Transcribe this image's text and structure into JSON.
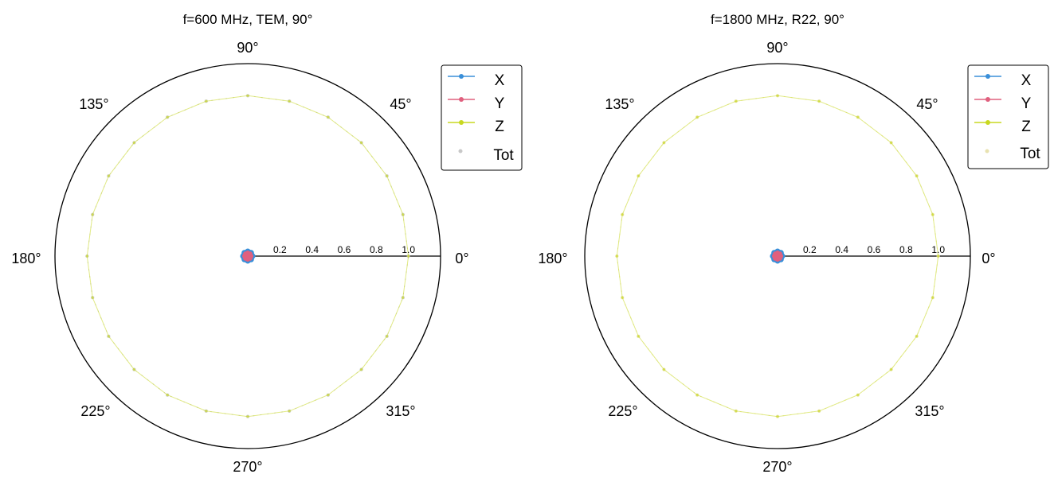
{
  "chart_data": [
    {
      "type": "polar",
      "title": "f=600 MHz, TEM, 90°",
      "angle_labels": [
        "0°",
        "45°",
        "90°",
        "135°",
        "180°",
        "225°",
        "270°",
        "315°"
      ],
      "radial_tick_labels": [
        "0.2",
        "0.4",
        "0.6",
        "0.8",
        "1.0"
      ],
      "rlim": [
        0,
        1.2
      ],
      "legend": {
        "position": "top-right",
        "entries": [
          "X",
          "Y",
          "Z",
          "Tot"
        ]
      },
      "series_colors": {
        "X": "#3a8fd9",
        "Y": "#e0607e",
        "Z": "#c8d820",
        "Tot": "#c8c8c8"
      },
      "series": [
        {
          "name": "X",
          "theta_deg": [
            0,
            45,
            90,
            135,
            180,
            225,
            270,
            315
          ],
          "r": [
            0.03,
            0.03,
            0.03,
            0.03,
            0.03,
            0.03,
            0.03,
            0.03
          ]
        },
        {
          "name": "Y",
          "theta_deg": [
            0,
            45,
            90,
            135,
            180,
            225,
            270,
            315
          ],
          "r": [
            0.02,
            0.02,
            0.02,
            0.02,
            0.02,
            0.02,
            0.02,
            0.02
          ]
        },
        {
          "name": "Z",
          "theta_deg": [
            0,
            15,
            30,
            45,
            60,
            75,
            90,
            105,
            120,
            135,
            150,
            165,
            180,
            195,
            210,
            225,
            240,
            255,
            270,
            285,
            300,
            315,
            330,
            345
          ],
          "r": [
            1.0,
            1.0,
            1.0,
            1.0,
            1.0,
            1.0,
            1.0,
            1.0,
            1.0,
            1.0,
            1.0,
            1.0,
            1.0,
            1.0,
            1.0,
            1.0,
            1.0,
            1.0,
            1.0,
            1.0,
            1.0,
            1.0,
            1.0,
            1.0
          ]
        },
        {
          "name": "Tot",
          "theta_deg": [
            0,
            15,
            30,
            45,
            60,
            75,
            90,
            105,
            120,
            135,
            150,
            165,
            180,
            195,
            210,
            225,
            240,
            255,
            270,
            285,
            300,
            315,
            330,
            345
          ],
          "r": [
            1.0,
            1.0,
            1.0,
            1.0,
            1.0,
            1.0,
            1.0,
            1.0,
            1.0,
            1.0,
            1.0,
            1.0,
            1.0,
            1.0,
            1.0,
            1.0,
            1.0,
            1.0,
            1.0,
            1.0,
            1.0,
            1.0,
            1.0,
            1.0
          ]
        }
      ]
    },
    {
      "type": "polar",
      "title": "f=1800 MHz, R22, 90°",
      "angle_labels": [
        "0°",
        "45°",
        "90°",
        "135°",
        "180°",
        "225°",
        "270°",
        "315°"
      ],
      "radial_tick_labels": [
        "0.2",
        "0.4",
        "0.6",
        "0.8",
        "1.0"
      ],
      "rlim": [
        0,
        1.2
      ],
      "legend": {
        "position": "top-right",
        "entries": [
          "X",
          "Y",
          "Z",
          "Tot"
        ]
      },
      "series_colors": {
        "X": "#3a8fd9",
        "Y": "#e0607e",
        "Z": "#c8d820",
        "Tot": "#e8e2b0"
      },
      "series": [
        {
          "name": "X",
          "theta_deg": [
            0,
            45,
            90,
            135,
            180,
            225,
            270,
            315
          ],
          "r": [
            0.03,
            0.03,
            0.03,
            0.03,
            0.03,
            0.03,
            0.03,
            0.03
          ]
        },
        {
          "name": "Y",
          "theta_deg": [
            0,
            45,
            90,
            135,
            180,
            225,
            270,
            315
          ],
          "r": [
            0.02,
            0.02,
            0.02,
            0.02,
            0.02,
            0.02,
            0.02,
            0.02
          ]
        },
        {
          "name": "Z",
          "theta_deg": [
            0,
            15,
            30,
            45,
            60,
            75,
            90,
            105,
            120,
            135,
            150,
            165,
            180,
            195,
            210,
            225,
            240,
            255,
            270,
            285,
            300,
            315,
            330,
            345
          ],
          "r": [
            1.0,
            1.0,
            1.0,
            1.0,
            1.0,
            1.0,
            1.0,
            1.0,
            1.0,
            1.0,
            1.0,
            1.0,
            1.0,
            1.0,
            1.0,
            1.0,
            1.0,
            1.0,
            1.0,
            1.0,
            1.0,
            1.0,
            1.0,
            1.0
          ]
        },
        {
          "name": "Tot",
          "theta_deg": [
            0,
            15,
            30,
            45,
            60,
            75,
            90,
            105,
            120,
            135,
            150,
            165,
            180,
            195,
            210,
            225,
            240,
            255,
            270,
            285,
            300,
            315,
            330,
            345
          ],
          "r": [
            1.0,
            1.0,
            1.0,
            1.0,
            1.0,
            1.0,
            1.0,
            1.0,
            1.0,
            1.0,
            1.0,
            1.0,
            1.0,
            1.0,
            1.0,
            1.0,
            1.0,
            1.0,
            1.0,
            1.0,
            1.0,
            1.0,
            1.0,
            1.0
          ]
        }
      ]
    }
  ]
}
